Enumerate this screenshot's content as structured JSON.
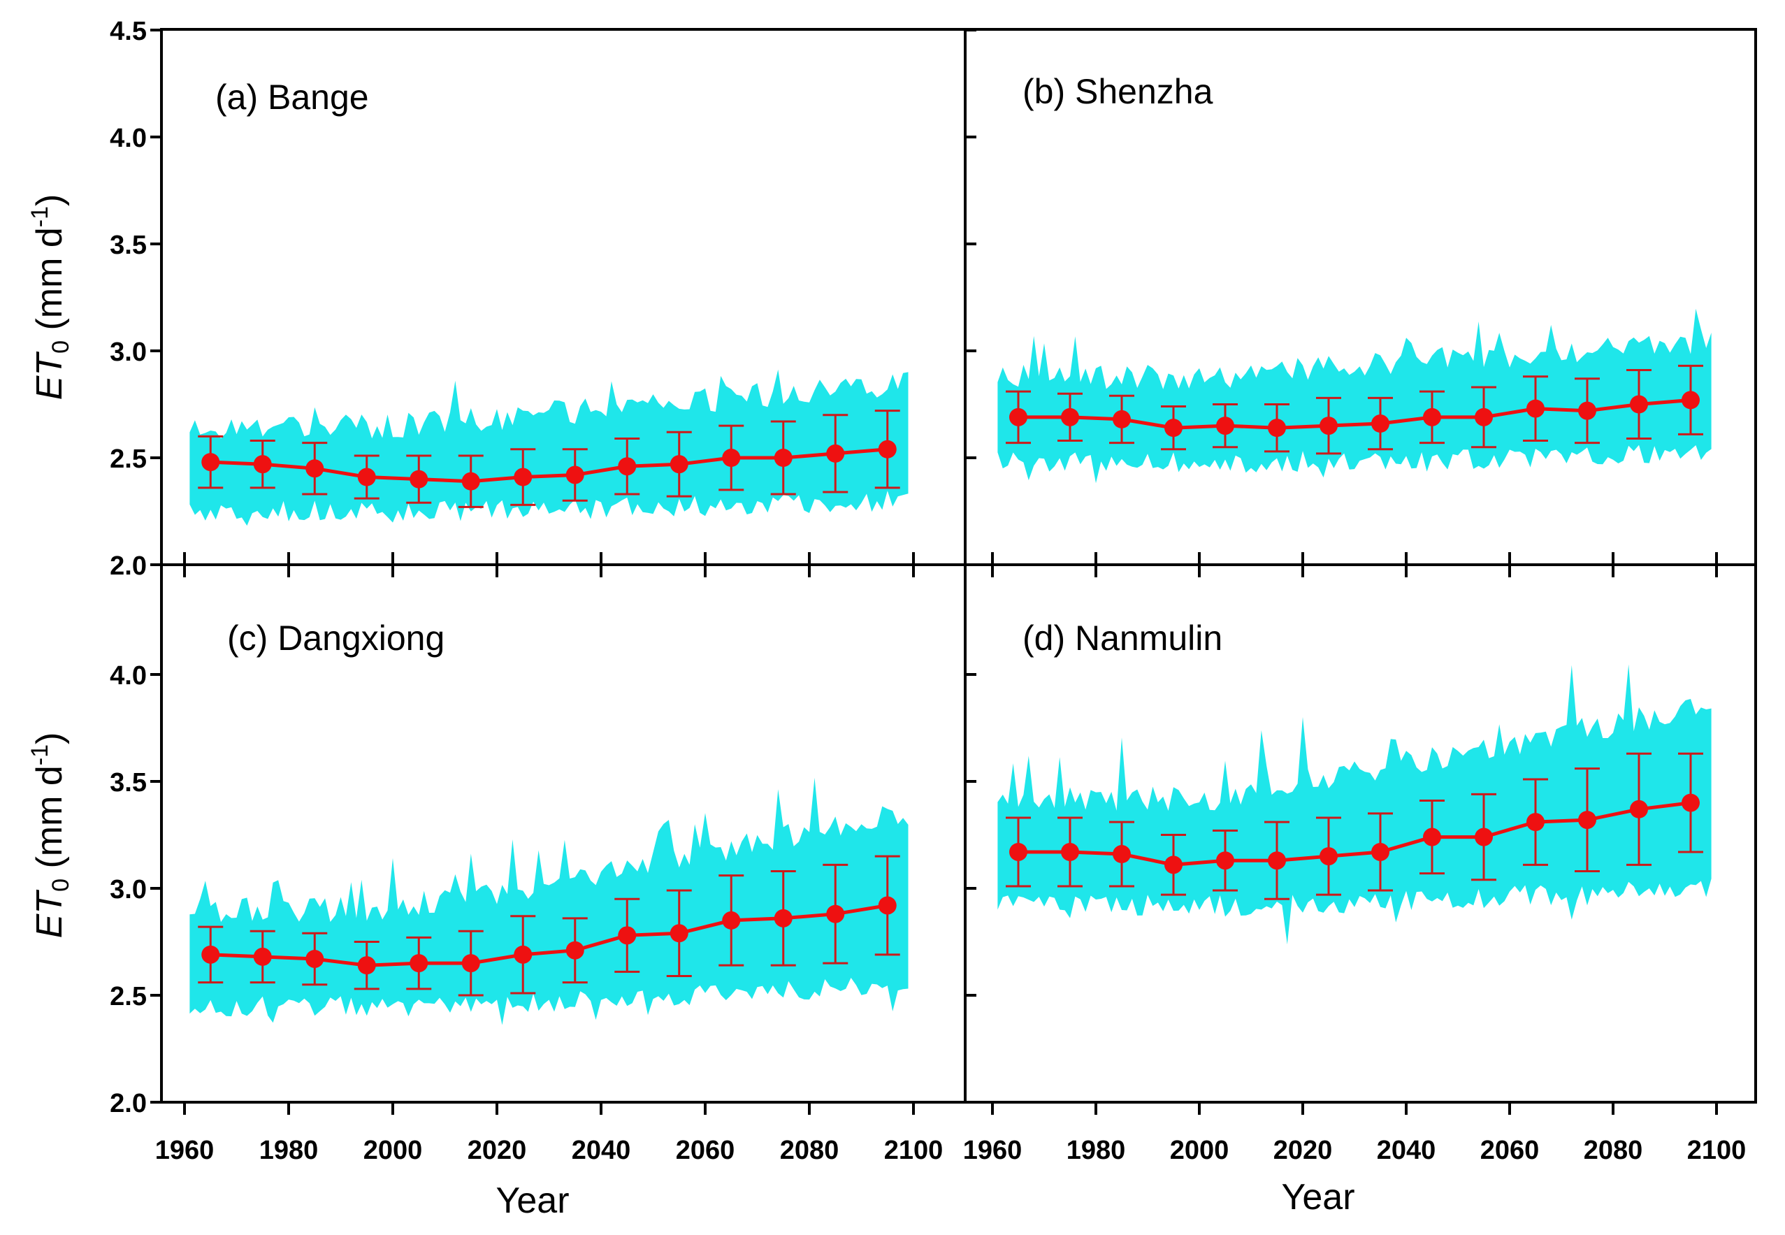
{
  "chart_data": [
    {
      "type": "line",
      "panel": "a",
      "title": "(a) Bange",
      "xlabel": "Year",
      "ylabel": "ET0 (mm d-1)",
      "xlim": [
        1955,
        2105
      ],
      "ylim": [
        2.0,
        4.5
      ],
      "x": [
        1965,
        1975,
        1985,
        1995,
        2005,
        2015,
        2025,
        2035,
        2045,
        2055,
        2065,
        2075,
        2085,
        2095
      ],
      "mean": [
        2.48,
        2.47,
        2.45,
        2.41,
        2.4,
        2.39,
        2.41,
        2.42,
        2.46,
        2.47,
        2.5,
        2.5,
        2.52,
        2.54
      ],
      "err": [
        0.12,
        0.11,
        0.12,
        0.1,
        0.11,
        0.12,
        0.13,
        0.12,
        0.13,
        0.15,
        0.15,
        0.17,
        0.18,
        0.18
      ],
      "band": {
        "lower": 2.25,
        "upper": 2.65,
        "lower_end": 2.3,
        "upper_end": 2.85,
        "spike": 0.15
      }
    },
    {
      "type": "line",
      "panel": "b",
      "title": "(b) Shenzha",
      "xlabel": "Year",
      "ylabel": "ET0 (mm d-1)",
      "xlim": [
        1955,
        2105
      ],
      "ylim": [
        2.0,
        4.5
      ],
      "x": [
        1965,
        1975,
        1985,
        1995,
        2005,
        2015,
        2025,
        2035,
        2045,
        2055,
        2065,
        2075,
        2085,
        2095
      ],
      "mean": [
        2.69,
        2.69,
        2.68,
        2.64,
        2.65,
        2.64,
        2.65,
        2.66,
        2.69,
        2.69,
        2.73,
        2.72,
        2.75,
        2.77
      ],
      "err": [
        0.12,
        0.11,
        0.11,
        0.1,
        0.1,
        0.11,
        0.13,
        0.12,
        0.12,
        0.14,
        0.15,
        0.15,
        0.16,
        0.16
      ],
      "band": {
        "lower": 2.48,
        "upper": 2.88,
        "lower_end": 2.52,
        "upper_end": 3.05,
        "spike": 0.18
      }
    },
    {
      "type": "line",
      "panel": "c",
      "title": "(c) Dangxiong",
      "xlabel": "Year",
      "ylabel": "ET0 (mm d-1)",
      "xlim": [
        1955,
        2105
      ],
      "ylim": [
        2.0,
        4.5
      ],
      "x": [
        1965,
        1975,
        1985,
        1995,
        2005,
        2015,
        2025,
        2035,
        2045,
        2055,
        2065,
        2075,
        2085,
        2095
      ],
      "mean": [
        2.69,
        2.68,
        2.67,
        2.64,
        2.65,
        2.65,
        2.69,
        2.71,
        2.78,
        2.79,
        2.85,
        2.86,
        2.88,
        2.92
      ],
      "err": [
        0.13,
        0.12,
        0.12,
        0.11,
        0.12,
        0.15,
        0.18,
        0.15,
        0.17,
        0.2,
        0.21,
        0.22,
        0.23,
        0.23
      ],
      "band": {
        "lower": 2.45,
        "upper": 2.9,
        "lower_end": 2.55,
        "upper_end": 3.35,
        "spike": 0.22
      }
    },
    {
      "type": "line",
      "panel": "d",
      "title": "(d) Nanmulin",
      "xlabel": "Year",
      "ylabel": "ET0 (mm d-1)",
      "xlim": [
        1955,
        2105
      ],
      "ylim": [
        2.0,
        4.5
      ],
      "x": [
        1965,
        1975,
        1985,
        1995,
        2005,
        2015,
        2025,
        2035,
        2045,
        2055,
        2065,
        2075,
        2085,
        2095
      ],
      "mean": [
        3.17,
        3.17,
        3.16,
        3.11,
        3.13,
        3.13,
        3.15,
        3.17,
        3.24,
        3.24,
        3.31,
        3.32,
        3.37,
        3.4
      ],
      "err": [
        0.16,
        0.16,
        0.15,
        0.14,
        0.14,
        0.18,
        0.18,
        0.18,
        0.17,
        0.2,
        0.2,
        0.24,
        0.26,
        0.23
      ],
      "band": {
        "lower": 2.92,
        "upper": 3.42,
        "lower_end": 3.0,
        "upper_end": 3.85,
        "spike": 0.3
      }
    }
  ],
  "axes": {
    "x_ticks": [
      "1960",
      "1980",
      "2000",
      "2020",
      "2040",
      "2060",
      "2080",
      "2100"
    ],
    "x_tick_values": [
      1960,
      1980,
      2000,
      2020,
      2040,
      2060,
      2080,
      2100
    ],
    "y_ticks_top": [
      "2.0",
      "2.5",
      "3.0",
      "3.5",
      "4.0",
      "4.5"
    ],
    "y_ticks_bottom": [
      "2.0",
      "2.5",
      "3.0",
      "3.5",
      "4.0"
    ],
    "y_tick_values_top": [
      2.0,
      2.5,
      3.0,
      3.5,
      4.0,
      4.5
    ],
    "y_tick_values_bottom": [
      2.0,
      2.5,
      3.0,
      3.5,
      4.0
    ],
    "x_title": "Year",
    "y_title_main": "ET",
    "y_title_sub": "0",
    "y_title_unit": " (mm d",
    "y_title_sup": "-1",
    "y_title_close": ")"
  },
  "colors": {
    "band": "#1fe6ea",
    "line": "#ee1111",
    "marker": "#ee1111",
    "errorbar": "#cc1a1a"
  }
}
